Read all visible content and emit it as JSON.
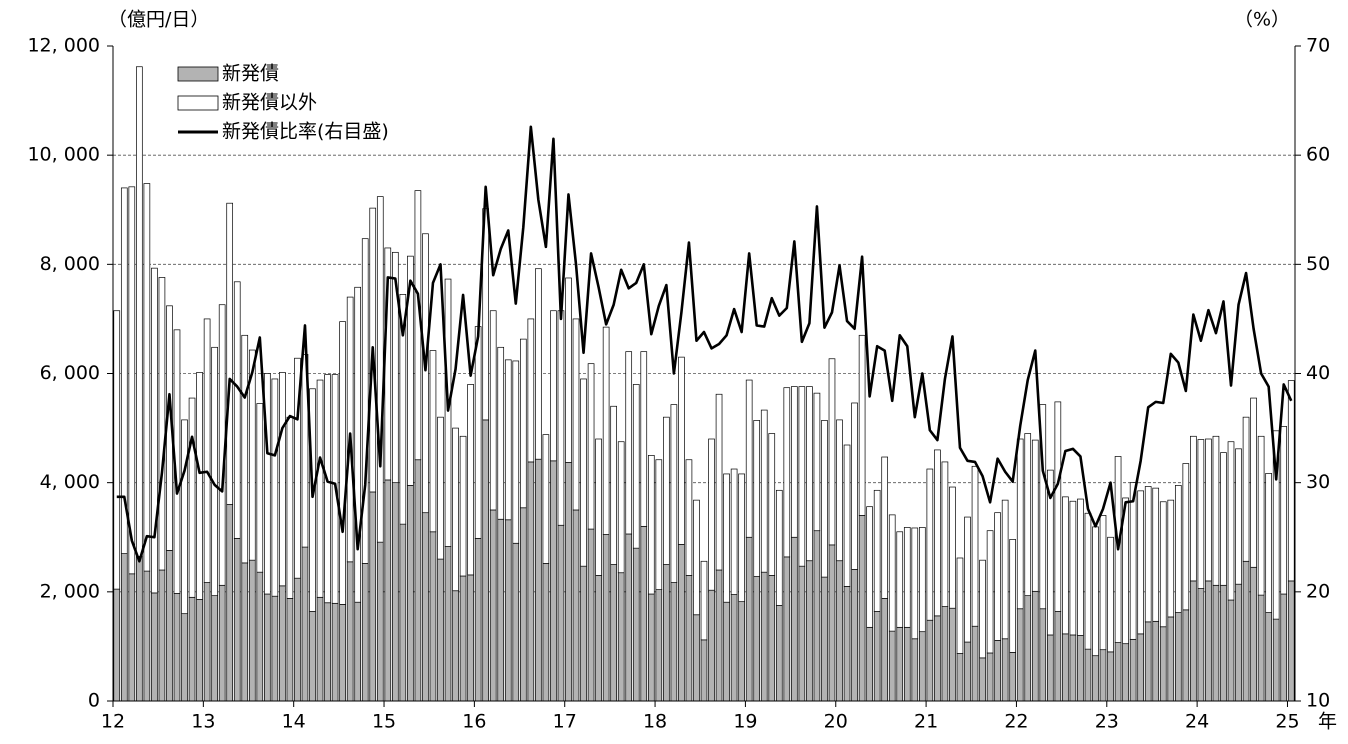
{
  "chart_data": {
    "type": "bar",
    "stacked": true,
    "y_unit_label": "（億円/日）",
    "y2_unit_label": "（%）",
    "x_unit_label": "年",
    "categories": [
      "12",
      null,
      null,
      null,
      null,
      null,
      null,
      null,
      null,
      null,
      null,
      null,
      "13",
      null,
      null,
      null,
      null,
      null,
      null,
      null,
      null,
      null,
      null,
      null,
      "14",
      null,
      null,
      null,
      null,
      null,
      null,
      null,
      null,
      null,
      null,
      null,
      "15",
      null,
      null,
      null,
      null,
      null,
      null,
      null,
      null,
      null,
      null,
      null,
      "16",
      null,
      null,
      null,
      null,
      null,
      null,
      null,
      null,
      null,
      null,
      null,
      "17",
      null,
      null,
      null,
      null,
      null,
      null,
      null,
      null,
      null,
      null,
      null,
      "18",
      null,
      null,
      null,
      null,
      null,
      null,
      null,
      null,
      null,
      null,
      null,
      "19",
      null,
      null,
      null,
      null,
      null,
      null,
      null,
      null,
      null,
      null,
      null,
      "20",
      null,
      null,
      null,
      null,
      null,
      null,
      null,
      null,
      null,
      null,
      null,
      "21",
      null,
      null,
      null,
      null,
      null,
      null,
      null,
      null,
      null,
      null,
      null,
      "22",
      null,
      null,
      null,
      null,
      null,
      null,
      null,
      null,
      null,
      null,
      null,
      "23",
      null,
      null,
      null,
      null,
      null,
      null,
      null,
      null,
      null,
      null,
      null,
      "24",
      null,
      null,
      null,
      null,
      null,
      null,
      null,
      null,
      null,
      null,
      null,
      "25"
    ],
    "series": [
      {
        "name": "新発債",
        "type": "bar",
        "color": "#b3b3b3",
        "values": [
          2050,
          2700,
          2330,
          2650,
          2380,
          1980,
          2400,
          2760,
          1970,
          1600,
          1900,
          1860,
          2170,
          1930,
          2120,
          3600,
          2980,
          2530,
          2580,
          2360,
          1960,
          1920,
          2110,
          1880,
          2250,
          2820,
          1640,
          1900,
          1800,
          1790,
          1770,
          2550,
          1810,
          2520,
          3830,
          2910,
          4050,
          4000,
          3240,
          3950,
          4420,
          3450,
          3100,
          2600,
          2830,
          2020,
          2290,
          2310,
          2980,
          5150,
          3500,
          3330,
          3320,
          2890,
          3540,
          4380,
          4430,
          2520,
          4400,
          3220,
          4370,
          3500,
          2470,
          3150,
          2300,
          3050,
          2500,
          2350,
          3060,
          2800,
          3200,
          1960,
          2040,
          2500,
          2170,
          2870,
          2300,
          1580,
          1120,
          2030,
          2400,
          1810,
          1950,
          1820,
          3000,
          2280,
          2360,
          2300,
          1750,
          2640,
          3000,
          2470,
          2570,
          3120,
          2270,
          2860,
          2570,
          2100,
          2410,
          3400,
          1350,
          1640,
          1880,
          1280,
          1350,
          1350,
          1140,
          1270,
          1480,
          1560,
          1730,
          1700,
          870,
          1080,
          1370,
          790,
          880,
          1110,
          1140,
          890,
          1690,
          1930,
          2010,
          1690,
          1210,
          1640,
          1230,
          1210,
          1200,
          950,
          830,
          940,
          900,
          1070,
          1050,
          1130,
          1230,
          1450,
          1460,
          1360,
          1540,
          1620,
          1670,
          2200,
          2060,
          2200,
          2120,
          2120,
          1850,
          2140,
          2560,
          2450,
          1940,
          1620,
          1500,
          1960,
          2200
        ]
      },
      {
        "name": "新発債以外",
        "type": "bar",
        "color": "#ffffff",
        "values": [
          5100,
          6700,
          7090,
          8970,
          7100,
          5950,
          5360,
          4480,
          4830,
          3550,
          3650,
          4160,
          4830,
          4550,
          5140,
          5520,
          4700,
          4170,
          3850,
          3090,
          4040,
          3980,
          3910,
          3320,
          4030,
          3530,
          4080,
          3980,
          4180,
          4190,
          5180,
          4850,
          5770,
          5950,
          5200,
          6330,
          4250,
          4220,
          4210,
          4200,
          4930,
          5110,
          3320,
          2600,
          4900,
          2980,
          2560,
          3490,
          3880,
          3870,
          3650,
          3150,
          2930,
          3340,
          3090,
          2620,
          3490,
          2360,
          2750,
          3930,
          3380,
          3500,
          3430,
          3030,
          2500,
          3800,
          2900,
          2400,
          3340,
          3000,
          3200,
          2540,
          2380,
          2700,
          3260,
          3430,
          2120,
          2100,
          1440,
          2770,
          3220,
          2350,
          2300,
          2340,
          2880,
          2860,
          2970,
          2600,
          2110,
          3100,
          2760,
          3290,
          3190,
          2520,
          2870,
          3410,
          2580,
          2590,
          3050,
          3300,
          2210,
          2220,
          2590,
          2130,
          1750,
          1830,
          2030,
          1910,
          2770,
          3040,
          2650,
          2220,
          1750,
          2290,
          2930,
          1790,
          2240,
          2340,
          2540,
          2070,
          3110,
          2970,
          2770,
          3740,
          3020,
          3840,
          2510,
          2450,
          2500,
          2490,
          2360,
          2460,
          2100,
          3410,
          2670,
          2870,
          2620,
          2480,
          2440,
          2290,
          2140,
          2330,
          2680,
          2650,
          2730,
          2600,
          2730,
          2430,
          2900,
          2480,
          2640,
          3100,
          2910,
          2550,
          3450,
          3070,
          3670
        ]
      },
      {
        "name": "新発債比率(右目盛)",
        "type": "line",
        "axis": "y2",
        "color": "#000000",
        "values": [
          28.7,
          28.7,
          24.7,
          22.8,
          25.1,
          25.0,
          30.9,
          38.1,
          29.0,
          31.1,
          34.2,
          30.9,
          31.0,
          29.8,
          29.2,
          39.5,
          38.8,
          37.8,
          40.1,
          43.3,
          32.7,
          32.5,
          35.0,
          36.1,
          35.8,
          44.4,
          28.7,
          32.3,
          30.1,
          29.9,
          25.5,
          34.5,
          23.9,
          29.8,
          42.4,
          31.5,
          48.8,
          48.7,
          43.5,
          48.5,
          47.3,
          40.3,
          48.3,
          50.0,
          36.6,
          40.4,
          47.2,
          39.8,
          43.4,
          57.1,
          49.0,
          51.4,
          53.1,
          46.4,
          53.4,
          62.6,
          55.9,
          51.6,
          61.5,
          45.0,
          56.4,
          50.0,
          41.9,
          51.0,
          47.9,
          44.5,
          46.3,
          49.5,
          47.8,
          48.3,
          50.0,
          43.6,
          46.2,
          48.1,
          40.0,
          45.6,
          52.0,
          43.0,
          43.8,
          42.3,
          42.7,
          43.5,
          45.9,
          43.8,
          51.0,
          44.4,
          44.3,
          46.9,
          45.3,
          46.0,
          52.1,
          42.9,
          44.6,
          55.3,
          44.2,
          45.6,
          49.9,
          44.8,
          44.1,
          50.7,
          37.9,
          42.5,
          42.1,
          37.5,
          43.5,
          42.5,
          36.0,
          40.0,
          34.8,
          33.9,
          39.5,
          43.4,
          33.2,
          32.0,
          31.9,
          30.6,
          28.2,
          32.2,
          31.0,
          30.1,
          35.2,
          39.4,
          42.1,
          31.1,
          28.6,
          29.9,
          32.9,
          33.1,
          32.4,
          27.6,
          26.0,
          27.6,
          30.0,
          23.9,
          28.2,
          28.3,
          32.0,
          36.9,
          37.4,
          37.3,
          41.8,
          41.0,
          38.4,
          45.4,
          43.0,
          45.8,
          43.7,
          46.6,
          38.9,
          46.3,
          49.2,
          44.1,
          40.0,
          38.8,
          30.3,
          39.0,
          37.5
        ]
      }
    ],
    "ylim": [
      0,
      12000
    ],
    "yticks": [
      0,
      {
        "value": 2000,
        "label": "2, 000"
      },
      {
        "value": 4000,
        "label": "4, 000"
      },
      {
        "value": 6000,
        "label": "6, 000"
      },
      {
        "value": 8000,
        "label": "8, 000"
      },
      {
        "value": 10000,
        "label": "10, 000"
      },
      {
        "value": 12000,
        "label": "12, 000"
      }
    ],
    "y2lim": [
      10,
      70
    ],
    "y2ticks": [
      10,
      20,
      30,
      40,
      50,
      60,
      70
    ],
    "grid": true,
    "legend": "upper left"
  }
}
